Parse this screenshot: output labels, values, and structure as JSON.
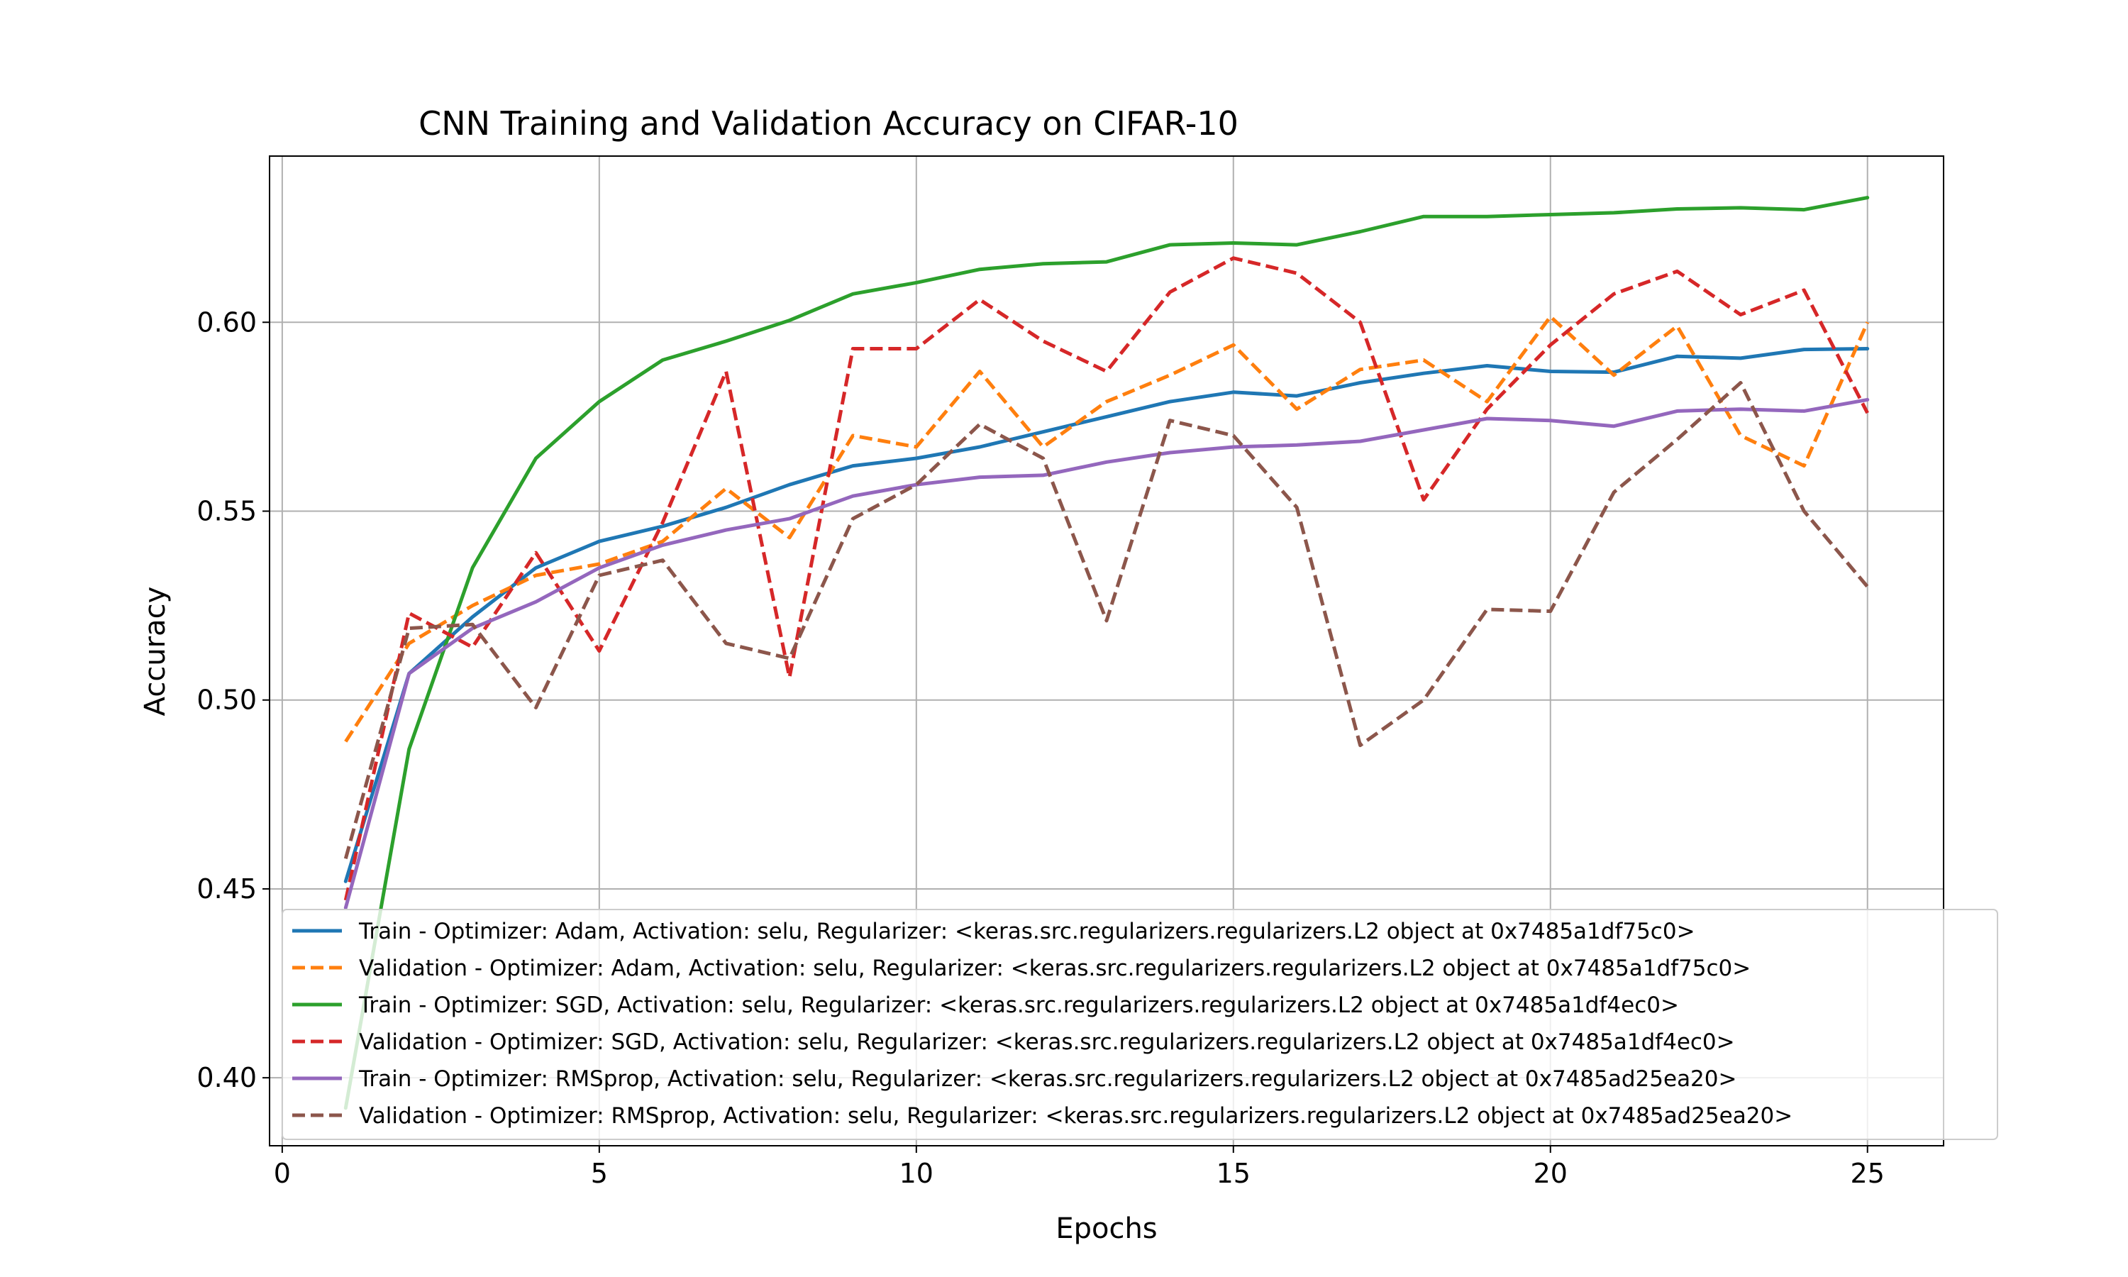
{
  "chart_data": {
    "type": "line",
    "title": "CNN Training and Validation Accuracy on CIFAR-10",
    "xlabel": "Epochs",
    "ylabel": "Accuracy",
    "xlim": [
      -0.2,
      26.2
    ],
    "ylim": [
      0.382,
      0.644
    ],
    "x_ticks": [
      0,
      5,
      10,
      15,
      20,
      25
    ],
    "y_ticks": [
      0.4,
      0.45,
      0.5,
      0.55,
      0.6
    ],
    "x_tick_labels": [
      "0",
      "5",
      "10",
      "15",
      "20",
      "25"
    ],
    "y_tick_labels": [
      "0.40",
      "0.45",
      "0.50",
      "0.55",
      "0.60"
    ],
    "grid": true,
    "legend_position": "lower-right",
    "x": [
      1,
      2,
      3,
      4,
      5,
      6,
      7,
      8,
      9,
      10,
      11,
      12,
      13,
      14,
      15,
      16,
      17,
      18,
      19,
      20,
      21,
      22,
      23,
      24,
      25
    ],
    "series": [
      {
        "name": "Train - Optimizer: Adam, Activation: selu, Regularizer: <keras.src.regularizers.regularizers.L2 object at 0x7485a1df75c0>",
        "color": "#1f77b4",
        "style": "solid",
        "values": [
          0.452,
          0.507,
          0.522,
          0.535,
          0.542,
          0.546,
          0.551,
          0.557,
          0.562,
          0.564,
          0.567,
          0.571,
          0.575,
          0.579,
          0.5815,
          0.5805,
          0.584,
          0.5865,
          0.5885,
          0.587,
          0.5868,
          0.591,
          0.5905,
          0.5928,
          0.593
        ]
      },
      {
        "name": "Validation - Optimizer: Adam, Activation: selu, Regularizer: <keras.src.regularizers.regularizers.L2 object at 0x7485a1df75c0>",
        "color": "#ff7f0e",
        "style": "dashed",
        "values": [
          0.489,
          0.515,
          0.525,
          0.533,
          0.536,
          0.542,
          0.556,
          0.543,
          0.57,
          0.567,
          0.587,
          0.567,
          0.579,
          0.586,
          0.594,
          0.577,
          0.5875,
          0.59,
          0.579,
          0.6015,
          0.586,
          0.599,
          0.57,
          0.562,
          0.6
        ]
      },
      {
        "name": "Train - Optimizer: SGD, Activation: selu, Regularizer: <keras.src.regularizers.regularizers.L2 object at 0x7485a1df4ec0>",
        "color": "#2ca02c",
        "style": "solid",
        "values": [
          0.392,
          0.487,
          0.535,
          0.564,
          0.579,
          0.59,
          0.595,
          0.6005,
          0.6075,
          0.6105,
          0.614,
          0.6155,
          0.616,
          0.6205,
          0.621,
          0.6205,
          0.624,
          0.628,
          0.628,
          0.6285,
          0.629,
          0.63,
          0.6303,
          0.6298,
          0.633
        ]
      },
      {
        "name": "Validation - Optimizer: SGD, Activation: selu, Regularizer: <keras.src.regularizers.regularizers.L2 object at 0x7485a1df4ec0>",
        "color": "#d62728",
        "style": "dashed",
        "values": [
          0.447,
          0.523,
          0.514,
          0.539,
          0.513,
          0.547,
          0.587,
          0.506,
          0.593,
          0.593,
          0.606,
          0.595,
          0.587,
          0.608,
          0.617,
          0.613,
          0.6,
          0.553,
          0.577,
          0.594,
          0.6075,
          0.6135,
          0.602,
          0.6085,
          0.576
        ]
      },
      {
        "name": "Train - Optimizer: RMSprop, Activation: selu, Regularizer: <keras.src.regularizers.regularizers.L2 object at 0x7485ad25ea20>",
        "color": "#9467bd",
        "style": "solid",
        "values": [
          0.445,
          0.507,
          0.519,
          0.526,
          0.535,
          0.541,
          0.545,
          0.548,
          0.554,
          0.557,
          0.559,
          0.5595,
          0.563,
          0.5655,
          0.567,
          0.5675,
          0.5685,
          0.5715,
          0.5745,
          0.574,
          0.5725,
          0.5765,
          0.577,
          0.5765,
          0.5795
        ]
      },
      {
        "name": "Validation - Optimizer: RMSprop, Activation: selu, Regularizer: <keras.src.regularizers.regularizers.L2 object at 0x7485ad25ea20>",
        "color": "#8c564b",
        "style": "dashed",
        "values": [
          0.458,
          0.519,
          0.52,
          0.498,
          0.533,
          0.537,
          0.515,
          0.511,
          0.548,
          0.557,
          0.573,
          0.564,
          0.521,
          0.574,
          0.57,
          0.551,
          0.488,
          0.5,
          0.524,
          0.5235,
          0.555,
          0.569,
          0.584,
          0.55,
          0.53
        ]
      }
    ]
  }
}
